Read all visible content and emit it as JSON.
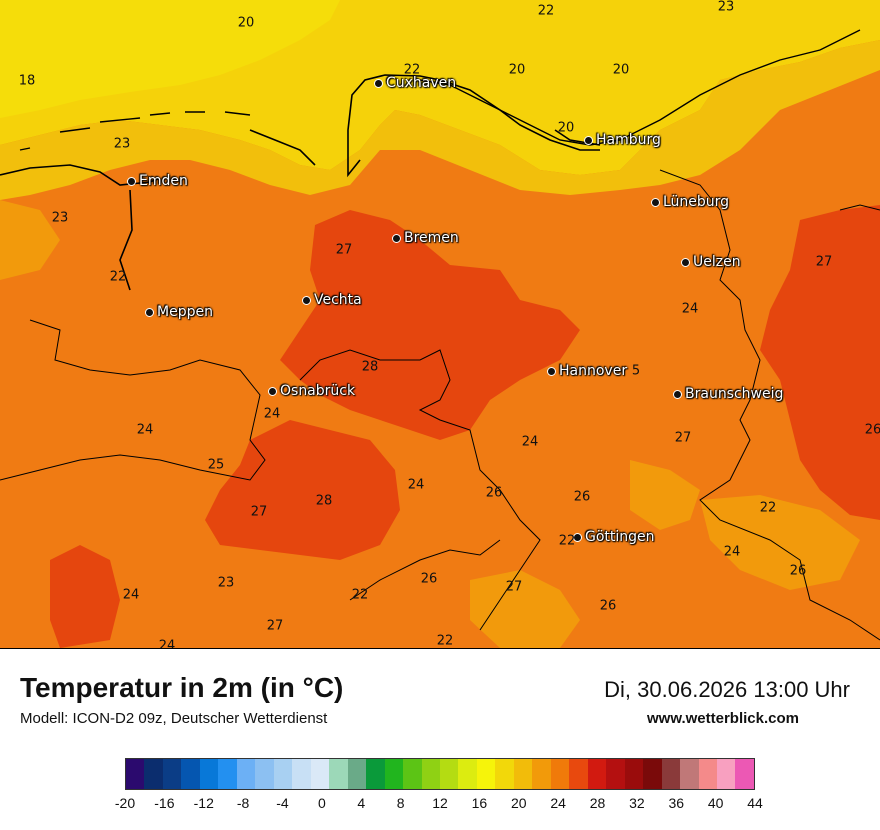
{
  "map": {
    "cities": [
      {
        "name": "Cuxhaven"
      },
      {
        "name": "Hamburg"
      },
      {
        "name": "Emden"
      },
      {
        "name": "Lüneburg"
      },
      {
        "name": "Bremen"
      },
      {
        "name": "Uelzen"
      },
      {
        "name": "Vechta"
      },
      {
        "name": "Meppen"
      },
      {
        "name": "Hannover"
      },
      {
        "name": "Osnabrück"
      },
      {
        "name": "Braunschweig"
      },
      {
        "name": "Göttingen"
      }
    ],
    "values": [
      "20",
      "22",
      "23",
      "18",
      "22",
      "20",
      "20",
      "20",
      "23",
      "23",
      "22",
      "27",
      "27",
      "24",
      "28",
      "5",
      "24",
      "26",
      "24",
      "25",
      "24",
      "27",
      "28",
      "24",
      "22",
      "26",
      "26",
      "27",
      "24",
      "23",
      "22",
      "26",
      "27",
      "26",
      "24",
      "27",
      "26",
      "22",
      "24",
      "22"
    ]
  },
  "legend": {
    "title": "Temperatur in 2m (in °C)",
    "model": "Modell: ICON-D2 09z, Deutscher Wetterdienst",
    "datetime": "Di, 30.06.2026 13:00 Uhr",
    "site": "www.wetterblick.com",
    "scale_colors": [
      "#2b0a6e",
      "#0b2d6e",
      "#0b3d86",
      "#0556b0",
      "#0878d8",
      "#2390f0",
      "#6cb0f5",
      "#8cc0f2",
      "#a8d0f2",
      "#c8e0f5",
      "#dae9f7",
      "#9cd8b8",
      "#6aaa88",
      "#0a9a3a",
      "#21b51e",
      "#5cc415",
      "#8fd114",
      "#b4dc12",
      "#dcec10",
      "#f6f40a",
      "#f2d80a",
      "#f2bc0a",
      "#f29a0a",
      "#f07a0a",
      "#e8490e",
      "#d21a10",
      "#b41010",
      "#9a0c0c",
      "#7a0a0a",
      "#8a3a3a",
      "#c07878",
      "#f48a8a",
      "#f8a0c0",
      "#ec58b4"
    ],
    "ticks": [
      "-20",
      "-16",
      "-12",
      "-8",
      "-4",
      "0",
      "4",
      "8",
      "12",
      "16",
      "20",
      "24",
      "28",
      "32",
      "36",
      "40",
      "44"
    ]
  }
}
